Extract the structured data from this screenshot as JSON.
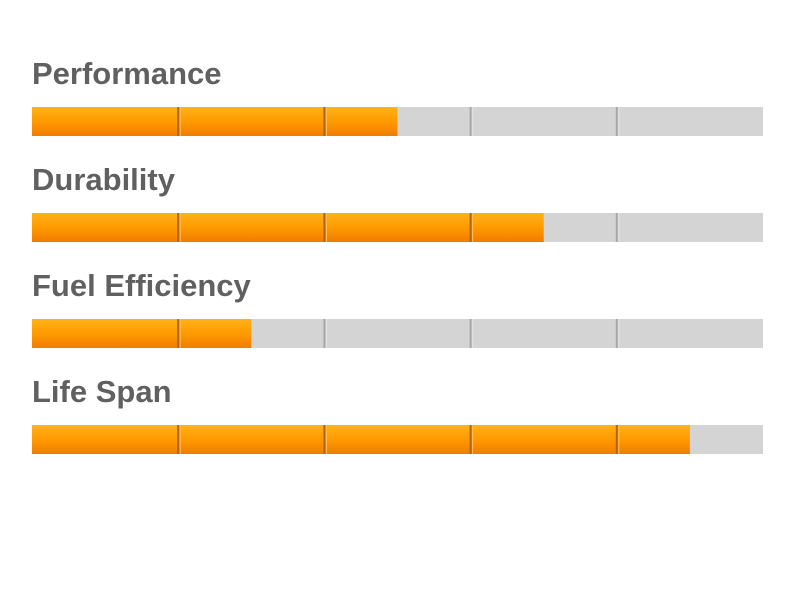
{
  "ratings": {
    "xlim": [
      0,
      5
    ],
    "dividers": [
      1,
      2,
      3,
      4
    ],
    "items": [
      {
        "label": "Performance",
        "value": 2.5
      },
      {
        "label": "Durability",
        "value": 3.5
      },
      {
        "label": "Fuel Efficiency",
        "value": 1.5
      },
      {
        "label": "Life Span",
        "value": 4.5
      }
    ]
  }
}
